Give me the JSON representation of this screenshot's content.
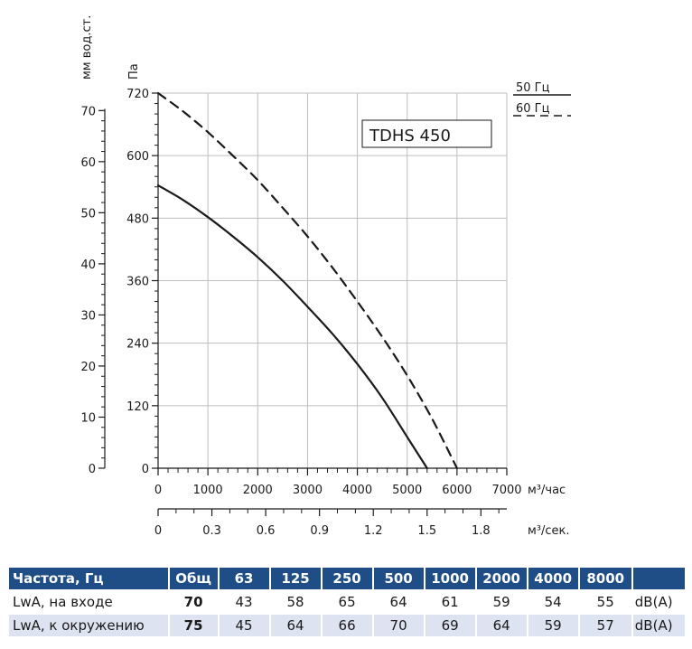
{
  "chart_data": {
    "type": "line",
    "model": "TDHS 450",
    "x_primary": {
      "label": "м³/час",
      "ticks": [
        0,
        1000,
        2000,
        3000,
        4000,
        5000,
        6000,
        7000
      ],
      "range": [
        0,
        7000
      ]
    },
    "x_secondary": {
      "label": "м³/сек.",
      "ticks": [
        0,
        0.3,
        0.6,
        0.9,
        1.2,
        1.5,
        1.8
      ],
      "tick_labels": [
        "0",
        "0.3",
        "0.6",
        "0.9",
        "1.2",
        "1.5",
        "1.8"
      ]
    },
    "y_primary": {
      "label": "Па",
      "ticks": [
        0,
        120,
        240,
        360,
        480,
        600,
        720
      ],
      "range": [
        0,
        720
      ]
    },
    "y_secondary": {
      "label": "мм вод.ст.",
      "ticks": [
        0,
        10,
        20,
        30,
        40,
        50,
        60,
        70
      ]
    },
    "grid": true,
    "legend_placement": "top-right",
    "series": [
      {
        "name": "50 Гц",
        "style": "solid",
        "x": [
          0,
          500,
          1000,
          1500,
          2000,
          2500,
          3000,
          3500,
          4000,
          4500,
          5000,
          5400
        ],
        "y": [
          543,
          515,
          482,
          445,
          405,
          360,
          310,
          258,
          200,
          135,
          60,
          0
        ]
      },
      {
        "name": "60 Гц",
        "style": "dashed",
        "x": [
          0,
          500,
          1000,
          1500,
          2000,
          2500,
          3000,
          3500,
          4000,
          4500,
          5000,
          5500,
          6000
        ],
        "y": [
          720,
          685,
          645,
          600,
          553,
          500,
          445,
          385,
          320,
          252,
          178,
          95,
          0
        ]
      }
    ]
  },
  "legend": {
    "item_50": "50 Гц",
    "item_60": "60 Гц"
  },
  "noise_table": {
    "headers": [
      "Частота, Гц",
      "Общ",
      "63",
      "125",
      "250",
      "500",
      "1000",
      "2000",
      "4000",
      "8000",
      ""
    ],
    "rows": [
      {
        "label": "LwA, на входе",
        "total": "70",
        "values": [
          "43",
          "58",
          "65",
          "64",
          "61",
          "59",
          "54",
          "55"
        ],
        "unit": "dB(A)"
      },
      {
        "label": "LwA, к окружению",
        "total": "75",
        "values": [
          "45",
          "64",
          "66",
          "70",
          "69",
          "64",
          "59",
          "57"
        ],
        "unit": "dB(A)"
      }
    ]
  },
  "colors": {
    "header_bg": "#1f4e86",
    "row_alt_bg": "#dde3f0",
    "curve": "#1a1a1a",
    "grid": "#bdbdbd"
  }
}
